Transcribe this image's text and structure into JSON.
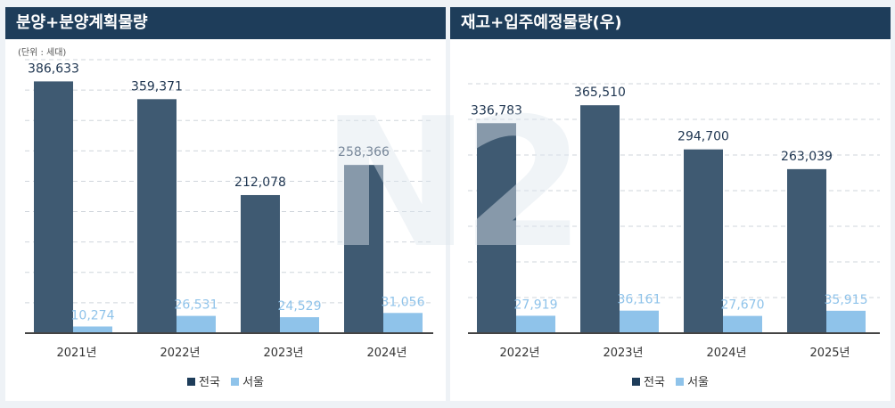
{
  "colors": {
    "header_bg": "#1e3d5a",
    "national": "#3f5a72",
    "seoul": "#8fc3ea",
    "label_dark": "#1e3550",
    "label_light": "#8fc3ea"
  },
  "left": {
    "title": "분양+분양계획물량",
    "unit_note": "(단위 : 세대)",
    "legend": [
      {
        "label": "전국",
        "color": "#3f5a72"
      },
      {
        "label": "서울",
        "color": "#8fc3ea"
      }
    ],
    "chart_data": {
      "type": "bar",
      "categories": [
        "2021년",
        "2022년",
        "2023년",
        "2024년"
      ],
      "series": [
        {
          "name": "전국",
          "values": [
            386633,
            359371,
            212078,
            258366
          ],
          "labels": [
            "386,633",
            "359,371",
            "212,078",
            "258,366"
          ]
        },
        {
          "name": "서울",
          "values": [
            10274,
            26531,
            24529,
            31056
          ],
          "labels": [
            "10,274",
            "26,531",
            "24,529",
            "31,056"
          ]
        }
      ],
      "ylim": [
        0,
        420000
      ],
      "gridlines": true,
      "legend_position": "bottom-center"
    }
  },
  "right": {
    "title": "재고+입주예정물량(우)",
    "legend": [
      {
        "label": "전국",
        "color": "#3f5a72"
      },
      {
        "label": "서울",
        "color": "#8fc3ea"
      }
    ],
    "chart_data": {
      "type": "bar",
      "categories": [
        "2022년",
        "2023년",
        "2024년",
        "2025년"
      ],
      "series": [
        {
          "name": "전국",
          "values": [
            336783,
            365510,
            294700,
            263039
          ],
          "labels": [
            "336,783",
            "365,510",
            "294,700",
            "263,039"
          ]
        },
        {
          "name": "서울",
          "values": [
            27919,
            36161,
            27670,
            35915
          ],
          "labels": [
            "27,919",
            "36,161",
            "27,670",
            "35,915"
          ]
        }
      ],
      "ylim": [
        0,
        400000
      ],
      "gridlines": true,
      "legend_position": "bottom-center"
    }
  },
  "watermark": "N2"
}
